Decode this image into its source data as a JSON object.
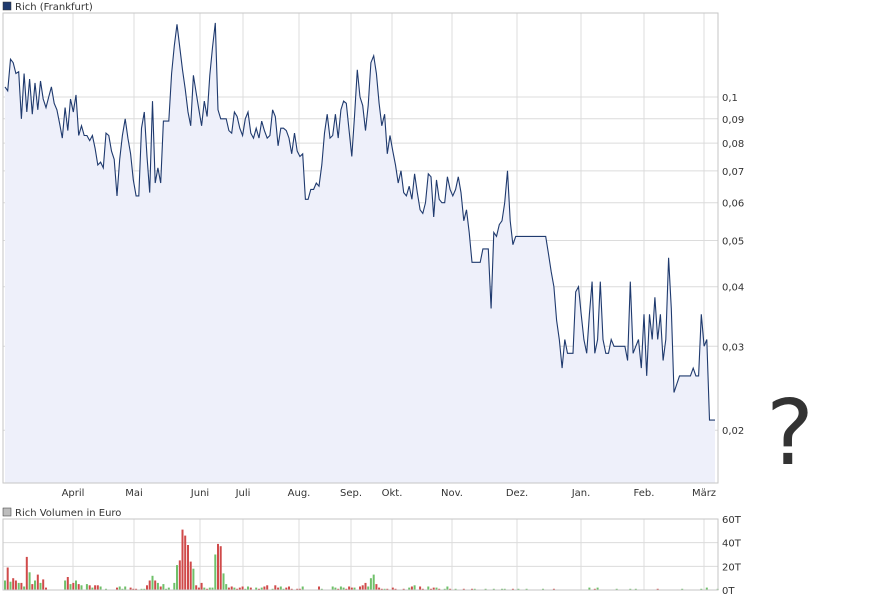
{
  "chart_data": [
    {
      "type": "area",
      "legend": "Rich (Frankfurt)",
      "colors": {
        "line": "#1f3a6e",
        "fill": "#eef0fa",
        "legend_swatch": "#1f3a6e"
      },
      "y_scale": "log",
      "ylim": [
        0.0155,
        0.15
      ],
      "grid": true,
      "x_ticks": [
        "April",
        "Mai",
        "Juni",
        "Juli",
        "Aug.",
        "Sep.",
        "Okt.",
        "Nov.",
        "Dez.",
        "Jan.",
        "Feb.",
        "März"
      ],
      "y_ticks": [
        "0,1",
        "0,09",
        "0,08",
        "0,07",
        "0,06",
        "0,05",
        "0,04",
        "0,03",
        "0,02"
      ],
      "y_tick_values": [
        0.1,
        0.09,
        0.08,
        0.07,
        0.06,
        0.05,
        0.04,
        0.03,
        0.02
      ],
      "series": [
        {
          "values": [
            0.105,
            0.103,
            0.12,
            0.118,
            0.112,
            0.113,
            0.09,
            0.112,
            0.093,
            0.109,
            0.092,
            0.107,
            0.094,
            0.108,
            0.099,
            0.095,
            0.1,
            0.105,
            0.097,
            0.094,
            0.088,
            0.082,
            0.095,
            0.085,
            0.099,
            0.093,
            0.101,
            0.083,
            0.087,
            0.083,
            0.083,
            0.081,
            0.083,
            0.078,
            0.072,
            0.073,
            0.071,
            0.084,
            0.083,
            0.077,
            0.074,
            0.062,
            0.074,
            0.083,
            0.09,
            0.082,
            0.076,
            0.067,
            0.062,
            0.062,
            0.086,
            0.093,
            0.075,
            0.063,
            0.098,
            0.066,
            0.071,
            0.066,
            0.089,
            0.089,
            0.089,
            0.112,
            0.128,
            0.142,
            0.127,
            0.114,
            0.104,
            0.093,
            0.087,
            0.111,
            0.102,
            0.094,
            0.087,
            0.098,
            0.091,
            0.111,
            0.127,
            0.143,
            0.094,
            0.09,
            0.09,
            0.09,
            0.085,
            0.084,
            0.093,
            0.091,
            0.086,
            0.083,
            0.09,
            0.093,
            0.084,
            0.082,
            0.086,
            0.082,
            0.089,
            0.085,
            0.082,
            0.083,
            0.094,
            0.091,
            0.079,
            0.086,
            0.086,
            0.085,
            0.082,
            0.076,
            0.084,
            0.077,
            0.075,
            0.076,
            0.061,
            0.061,
            0.064,
            0.064,
            0.066,
            0.065,
            0.072,
            0.084,
            0.092,
            0.082,
            0.083,
            0.092,
            0.082,
            0.094,
            0.098,
            0.097,
            0.085,
            0.075,
            0.091,
            0.114,
            0.1,
            0.096,
            0.085,
            0.096,
            0.118,
            0.122,
            0.112,
            0.097,
            0.087,
            0.092,
            0.076,
            0.083,
            0.077,
            0.072,
            0.066,
            0.07,
            0.063,
            0.062,
            0.065,
            0.061,
            0.069,
            0.063,
            0.058,
            0.057,
            0.06,
            0.069,
            0.068,
            0.056,
            0.067,
            0.061,
            0.06,
            0.06,
            0.068,
            0.064,
            0.062,
            0.064,
            0.068,
            0.063,
            0.055,
            0.058,
            0.052,
            0.045,
            0.045,
            0.045,
            0.045,
            0.048,
            0.048,
            0.048,
            0.036,
            0.052,
            0.051,
            0.054,
            0.055,
            0.06,
            0.07,
            0.055,
            0.049,
            0.051,
            0.051,
            0.051,
            0.051,
            0.051,
            0.051,
            0.051,
            0.051,
            0.051,
            0.051,
            0.051,
            0.051,
            0.047,
            0.043,
            0.04,
            0.034,
            0.031,
            0.027,
            0.031,
            0.029,
            0.029,
            0.029,
            0.039,
            0.04,
            0.035,
            0.031,
            0.029,
            0.035,
            0.041,
            0.029,
            0.031,
            0.041,
            0.031,
            0.029,
            0.029,
            0.031,
            0.03,
            0.03,
            0.03,
            0.03,
            0.03,
            0.028,
            0.041,
            0.029,
            0.03,
            0.031,
            0.027,
            0.035,
            0.026,
            0.035,
            0.031,
            0.038,
            0.031,
            0.035,
            0.028,
            0.031,
            0.046,
            0.036,
            0.024,
            0.025,
            0.026,
            0.026,
            0.026,
            0.026,
            0.026,
            0.027,
            0.026,
            0.026,
            0.035,
            0.03,
            0.031,
            0.021,
            0.021,
            0.021
          ]
        }
      ]
    },
    {
      "type": "bar",
      "legend": "Rich Volumen in Euro",
      "colors": {
        "up": "#6fc06a",
        "down": "#d04a4a",
        "legend_swatch": "#bdbdbd"
      },
      "ylim": [
        0,
        60000
      ],
      "grid": true,
      "y_ticks": [
        "60T",
        "40T",
        "20T",
        "0T"
      ],
      "y_tick_values": [
        60000,
        40000,
        20000,
        0
      ],
      "series": [
        {
          "values": [
            8000,
            19000,
            7000,
            10000,
            8000,
            6000,
            6000,
            3000,
            28000,
            15000,
            5000,
            8000,
            13000,
            6000,
            9000,
            2000,
            0,
            0,
            0,
            0,
            0,
            0,
            8000,
            11000,
            5000,
            6000,
            8000,
            5000,
            4000,
            0,
            5000,
            4000,
            2000,
            4000,
            4000,
            3000,
            0,
            1000,
            0,
            0,
            0,
            2000,
            3000,
            1000,
            3000,
            0,
            2000,
            1000,
            1000,
            0,
            1000,
            1000,
            4000,
            8000,
            12000,
            8000,
            6000,
            3000,
            5000,
            1000,
            2000,
            0,
            6000,
            21000,
            25000,
            51000,
            46000,
            38000,
            24000,
            18000,
            4000,
            2000,
            6000,
            2000,
            1000,
            2000,
            2000,
            30000,
            39000,
            37000,
            14000,
            5000,
            2000,
            3000,
            2000,
            1000,
            2000,
            3000,
            1000,
            3000,
            2000,
            0,
            2000,
            1000,
            2000,
            3000,
            4000,
            0,
            1000,
            4000,
            2000,
            3000,
            1000,
            2000,
            3000,
            1000,
            0,
            1000,
            1000,
            3000,
            0,
            0,
            0,
            0,
            0,
            3000,
            1000,
            0,
            0,
            0,
            3000,
            2000,
            1000,
            3000,
            2000,
            1000,
            3000,
            2000,
            2000,
            0,
            3000,
            4000,
            6000,
            3000,
            10000,
            13000,
            5000,
            2000,
            1000,
            1000,
            1000,
            0,
            2000,
            1000,
            0,
            0,
            1000,
            0,
            2000,
            3000,
            4000,
            0,
            3000,
            1000,
            0,
            3000,
            1000,
            2000,
            2000,
            1000,
            0,
            1000,
            3000,
            1000,
            0,
            1000,
            0,
            0,
            1000,
            0,
            0,
            1000,
            1000,
            0,
            0,
            0,
            1000,
            0,
            0,
            1000,
            0,
            0,
            1000,
            1000,
            0,
            0,
            1000,
            0,
            1000,
            0,
            0,
            1000,
            0,
            0,
            0,
            0,
            0,
            1000,
            0,
            0,
            0,
            1000,
            0,
            0,
            0,
            0,
            0,
            0,
            0,
            0,
            0,
            0,
            0,
            0,
            2000,
            0,
            1000,
            2000,
            0,
            0,
            0,
            0,
            0,
            0,
            1000,
            0,
            0,
            0,
            0,
            1000,
            0,
            1000,
            0,
            0,
            0,
            0,
            0,
            0,
            0,
            1000,
            0,
            0,
            0,
            0,
            0,
            0,
            0,
            0,
            1000,
            0,
            0,
            0,
            0,
            0,
            0,
            1000,
            0,
            2000,
            0,
            0,
            0,
            1000,
            0,
            0,
            0,
            0,
            0,
            0,
            0,
            0
          ]
        }
      ]
    }
  ],
  "overlay": {
    "glyph": "?",
    "color": "#d86a6a"
  }
}
